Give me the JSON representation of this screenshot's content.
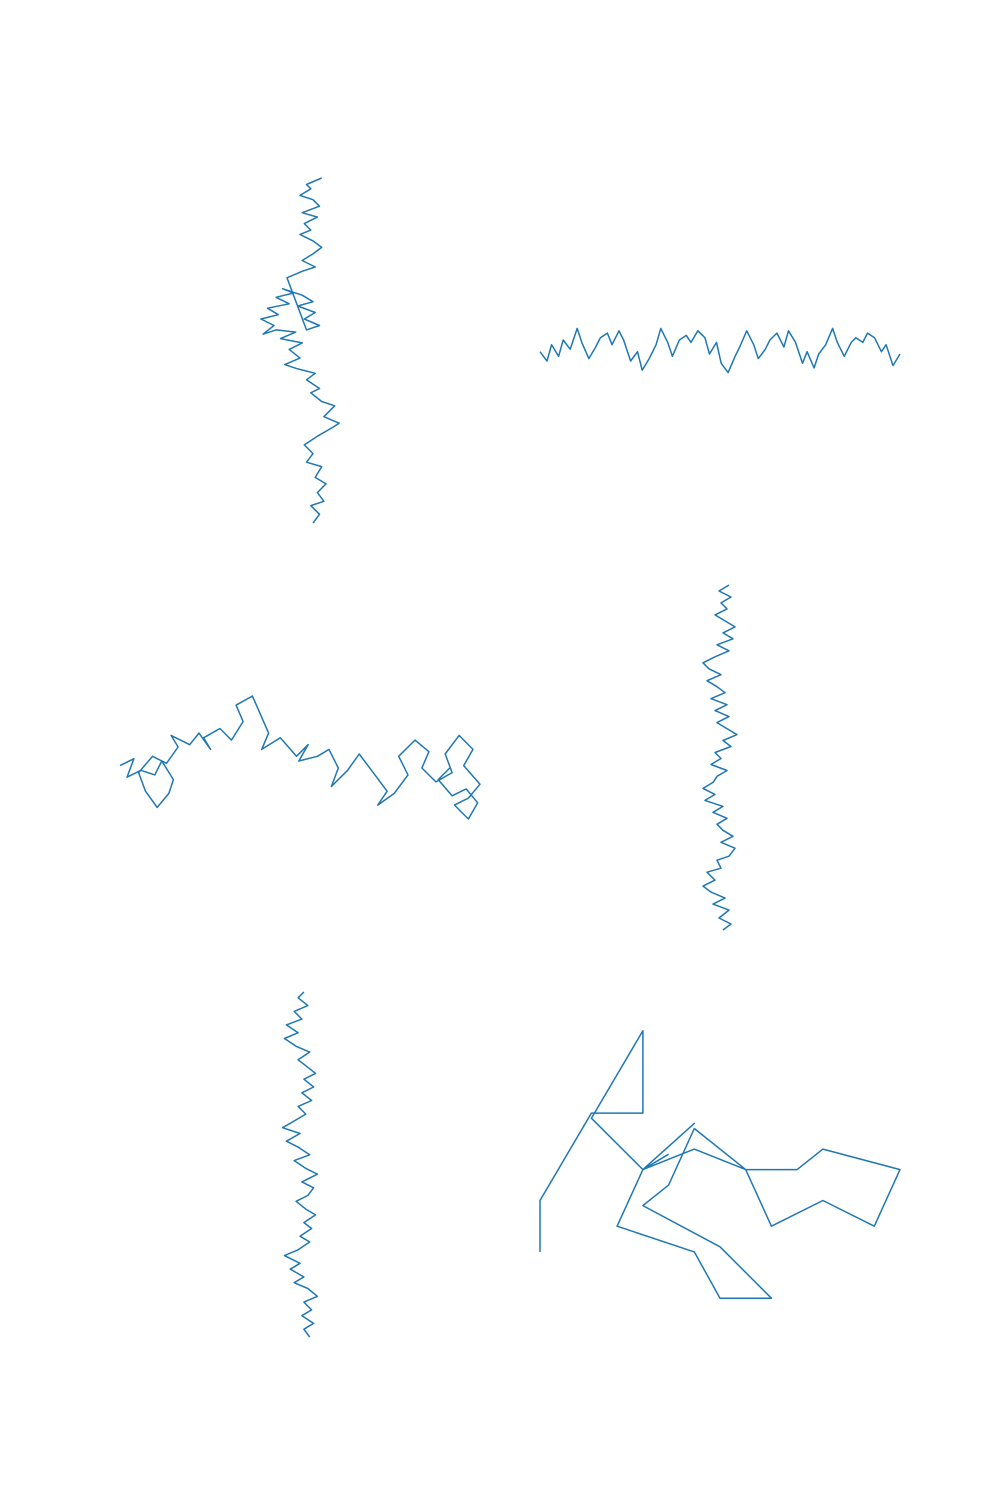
{
  "figure": {
    "line_color": "#1f77b4",
    "background": "#ffffff"
  },
  "chart_data": [
    {
      "type": "line",
      "title": "",
      "xlabel": "",
      "ylabel": "",
      "axes_visible": false,
      "grid": false,
      "aspect": "equal",
      "series": [
        {
          "x": [
            0.9,
            1.2,
            0.8,
            1.4,
            1.1,
            1.5,
            1.0,
            1.3,
            0.6,
            0.9,
            0.5,
            1.1,
            1.8,
            2.1,
            1.4,
            1.9,
            1.3,
            0.8,
            1.2,
            0.6,
            1.0,
            0.2,
            -0.4,
            0.3,
            -0.2,
            0.4,
            -0.6,
            0.1,
            -0.8,
            -1.4,
            -0.9,
            -1.5,
            -0.7,
            -1.2,
            -0.2,
            -0.8,
            0.0,
            -0.5,
            0.4,
            0.9,
            0.2,
            1.0,
            0.5,
            1.2,
            0.6,
            -0.3,
            0.4,
            1.0,
            0.4,
            0.9,
            1.3,
            0.9,
            0.3,
            0.8,
            0.5,
            1.1,
            0.4,
            1.2,
            0.9,
            0.3,
            0.8,
            0.6,
            1.3
          ],
          "y": [
            0.0,
            0.4,
            0.8,
            1.0,
            1.4,
            1.8,
            2.1,
            2.6,
            2.8,
            3.2,
            3.6,
            4.0,
            4.4,
            4.6,
            4.9,
            5.4,
            5.6,
            6.0,
            6.2,
            6.6,
            6.9,
            7.1,
            7.3,
            7.6,
            8.0,
            8.3,
            8.5,
            8.8,
            8.9,
            8.7,
            9.1,
            9.4,
            9.6,
            9.9,
            10.1,
            10.4,
            10.6,
            10.8,
            10.5,
            10.2,
            10.0,
            9.7,
            9.4,
            9.1,
            8.9,
            11.3,
            11.6,
            11.8,
            12.1,
            12.4,
            12.7,
            13.0,
            13.3,
            13.5,
            13.8,
            14.1,
            14.3,
            14.6,
            14.9,
            15.1,
            15.4,
            15.6,
            15.9
          ]
        }
      ]
    },
    {
      "type": "line",
      "title": "",
      "xlabel": "",
      "ylabel": "",
      "axes_visible": false,
      "grid": false,
      "aspect": "equal",
      "series": [
        {
          "x": [
            0.0,
            0.3,
            0.5,
            0.8,
            1.0,
            1.3,
            1.6,
            1.8,
            2.1,
            2.4,
            2.6,
            2.9,
            3.1,
            3.4,
            3.6,
            3.9,
            4.2,
            4.4,
            4.7,
            5.0,
            5.2,
            5.5,
            5.7,
            6.0,
            6.3,
            6.5,
            6.8,
            7.1,
            7.3,
            7.6,
            7.8,
            8.1,
            8.4,
            8.6,
            8.9,
            9.2,
            9.4,
            9.7,
            9.9,
            10.2,
            10.5,
            10.7,
            11.0,
            11.3,
            11.5,
            11.8,
            12.0,
            12.3,
            12.6,
            12.8,
            13.1,
            13.4,
            13.6,
            13.9,
            14.1,
            14.4,
            14.7,
            14.9,
            15.2,
            15.5
          ],
          "y": [
            0.6,
            0.2,
            0.9,
            0.4,
            1.1,
            0.7,
            1.6,
            1.0,
            0.3,
            0.8,
            1.2,
            1.4,
            0.9,
            1.5,
            1.1,
            0.2,
            0.6,
            -0.2,
            0.3,
            0.9,
            1.6,
            1.0,
            0.4,
            1.1,
            1.3,
            1.0,
            1.5,
            1.2,
            0.5,
            1.0,
            0.1,
            -0.3,
            0.4,
            0.8,
            1.5,
            0.9,
            0.3,
            0.7,
            1.1,
            1.4,
            0.8,
            1.5,
            1.0,
            0.1,
            0.6,
            -0.1,
            0.5,
            0.9,
            1.6,
            1.0,
            0.4,
            1.0,
            1.2,
            1.0,
            1.4,
            1.2,
            0.6,
            0.9,
            0.0,
            0.5
          ]
        }
      ]
    },
    {
      "type": "line",
      "title": "",
      "xlabel": "",
      "ylabel": "",
      "axes_visible": false,
      "grid": false,
      "aspect": "equal",
      "series": [
        {
          "x": [
            0.0,
            0.6,
            0.3,
            0.9,
            1.5,
            1.8,
            2.3,
            2.1,
            1.6,
            1.1,
            0.8,
            1.4,
            2.0,
            2.5,
            2.2,
            3.0,
            3.4,
            3.9,
            3.6,
            4.3,
            4.8,
            5.3,
            5.0,
            5.7,
            6.4,
            6.1,
            6.9,
            7.6,
            8.1,
            7.7,
            8.5,
            9.0,
            9.4,
            9.1,
            9.8,
            10.3,
            10.9,
            11.5,
            11.1,
            11.8,
            12.4,
            12.0,
            12.7,
            13.3,
            13.0,
            13.6,
            14.3,
            14.0,
            14.6,
            15.2,
            14.8,
            15.5,
            15.0,
            14.4,
            15.0,
            15.4,
            14.9,
            14.3,
            13.7,
            14.2
          ],
          "y": [
            2.2,
            2.5,
            1.7,
            2.0,
            1.8,
            2.4,
            1.6,
            1.0,
            0.4,
            1.1,
            1.9,
            2.6,
            2.3,
            3.0,
            3.5,
            3.1,
            3.6,
            2.9,
            3.4,
            3.8,
            3.3,
            4.1,
            4.8,
            5.2,
            3.6,
            2.9,
            3.4,
            2.6,
            3.1,
            2.4,
            2.6,
            2.9,
            2.1,
            1.3,
            2.0,
            2.7,
            1.9,
            1.1,
            0.5,
            1.0,
            1.8,
            2.6,
            3.3,
            2.8,
            2.1,
            1.5,
            1.9,
            2.7,
            3.5,
            2.9,
            2.2,
            1.4,
            0.8,
            0.5,
            -0.1,
            0.6,
            1.2,
            0.9,
            1.6,
            2.1
          ]
        }
      ]
    },
    {
      "type": "line",
      "title": "",
      "xlabel": "",
      "ylabel": "",
      "axes_visible": false,
      "grid": false,
      "aspect": "equal",
      "series": [
        {
          "x": [
            1.2,
            1.6,
            1.0,
            1.5,
            0.7,
            1.3,
            0.6,
            0.2,
            0.8,
            0.4,
            1.1,
            0.9,
            1.5,
            1.8,
            1.1,
            1.7,
            1.2,
            0.9,
            1.4,
            0.7,
            1.2,
            0.3,
            0.8,
            0.2,
            0.7,
            0.9,
            1.4,
            0.6,
            1.1,
            0.8,
            1.6,
            1.2,
            1.9,
            1.4,
            0.9,
            1.5,
            0.8,
            1.4,
            0.6,
            1.3,
            0.9,
            0.4,
            1.1,
            0.5,
            0.2,
            0.8,
            1.5,
            0.9,
            1.7,
            1.2,
            1.8,
            1.3,
            0.8,
            1.4,
            1.1,
            1.6,
            1.0,
            1.5
          ],
          "y": [
            0.0,
            0.3,
            0.6,
            1.0,
            1.3,
            1.6,
            1.9,
            2.2,
            2.5,
            2.9,
            3.1,
            3.5,
            3.7,
            4.1,
            4.4,
            4.7,
            5.0,
            5.3,
            5.6,
            5.9,
            6.2,
            6.5,
            6.8,
            7.1,
            7.4,
            7.7,
            8.0,
            8.3,
            8.6,
            8.9,
            9.2,
            9.5,
            9.8,
            10.1,
            10.4,
            10.7,
            11.0,
            11.3,
            11.6,
            11.9,
            12.2,
            12.5,
            12.8,
            13.1,
            13.4,
            13.7,
            14.0,
            14.3,
            14.6,
            14.9,
            15.2,
            15.5,
            15.8,
            16.1,
            16.4,
            16.7,
            17.0,
            17.3
          ]
        }
      ]
    },
    {
      "type": "line",
      "title": "",
      "xlabel": "",
      "ylabel": "",
      "axes_visible": false,
      "grid": false,
      "aspect": "equal",
      "series": [
        {
          "x": [
            1.2,
            0.9,
            1.4,
            0.8,
            1.3,
            0.9,
            1.6,
            1.1,
            0.4,
            0.9,
            0.2,
            0.7,
            -0.1,
            0.6,
            1.2,
            0.7,
            1.3,
            0.9,
            1.5,
            1.0,
            0.5,
            1.1,
            1.4,
            0.8,
            1.6,
            1.0,
            0.4,
            1.2,
            0.6,
            0.0,
            0.7,
            -0.2,
            0.5,
            1.0,
            0.6,
            1.3,
            0.8,
            1.4,
            0.9,
            1.5,
            1.0,
            0.6,
            1.2,
            0.5,
            -0.1,
            0.6,
            0.0,
            0.8,
            0.4,
            1.1,
            0.6,
            0.9
          ],
          "y": [
            0.0,
            0.4,
            0.7,
            1.1,
            1.4,
            1.8,
            2.1,
            2.5,
            2.8,
            3.1,
            3.5,
            3.8,
            4.2,
            4.5,
            4.9,
            5.2,
            5.6,
            5.9,
            6.3,
            6.6,
            7.0,
            7.3,
            7.7,
            8.0,
            8.4,
            8.7,
            9.1,
            9.4,
            9.8,
            10.1,
            10.5,
            10.8,
            11.2,
            11.5,
            11.9,
            12.2,
            12.6,
            12.9,
            13.3,
            13.6,
            14.0,
            14.3,
            14.7,
            15.0,
            15.4,
            15.7,
            16.1,
            16.4,
            16.8,
            17.1,
            17.5,
            17.8
          ]
        }
      ]
    },
    {
      "type": "line",
      "title": "",
      "xlabel": "",
      "ylabel": "",
      "axes_visible": false,
      "grid": false,
      "aspect": "equal",
      "series": [
        {
          "x": [
            0.0,
            0.0,
            1.0,
            2.0,
            2.0,
            1.0,
            2.0,
            3.0,
            2.0,
            1.5,
            3.0,
            3.5,
            4.5,
            3.5,
            2.0,
            2.5,
            3.0,
            4.0,
            5.0,
            5.5,
            7.0,
            6.5,
            5.5,
            4.5,
            4.0,
            3.0,
            2.0,
            2.5
          ],
          "y": [
            0.0,
            1.0,
            2.7,
            2.7,
            4.3,
            2.6,
            1.6,
            2.5,
            1.6,
            0.5,
            0.0,
            -0.9,
            -0.9,
            0.1,
            0.9,
            1.3,
            2.4,
            1.6,
            1.6,
            2.0,
            1.6,
            0.5,
            1.0,
            0.5,
            1.6,
            2.0,
            1.6,
            1.9
          ]
        }
      ]
    }
  ]
}
